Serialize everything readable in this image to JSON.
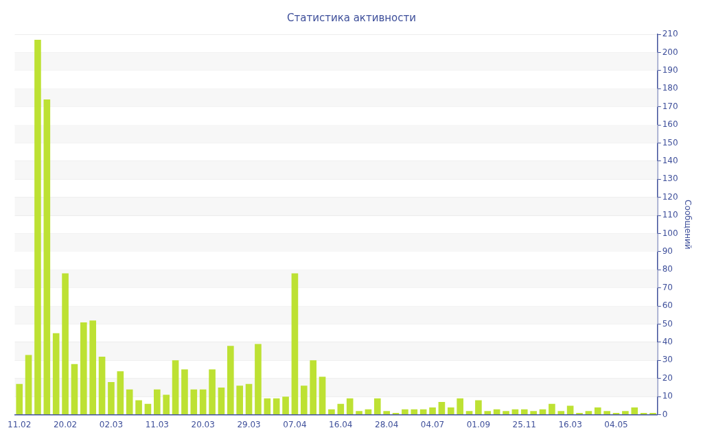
{
  "chart_data": {
    "type": "bar",
    "title": "Статистика активности",
    "ylabel": "Сообщений",
    "categories": [
      "11.02",
      null,
      null,
      null,
      null,
      "20.02",
      null,
      null,
      null,
      null,
      "02.03",
      null,
      null,
      null,
      null,
      "11.03",
      null,
      null,
      null,
      null,
      "20.03",
      null,
      null,
      null,
      null,
      "29.03",
      null,
      null,
      null,
      null,
      "07.04",
      null,
      null,
      null,
      null,
      "16.04",
      null,
      null,
      null,
      null,
      "28.04",
      null,
      null,
      null,
      null,
      "04.07",
      null,
      null,
      null,
      null,
      "01.09",
      null,
      null,
      null,
      null,
      "25.11",
      null,
      null,
      null,
      null,
      "16.03",
      null,
      null,
      null,
      null,
      "04.05",
      null,
      null,
      null,
      null
    ],
    "values": [
      17,
      33,
      207,
      174,
      45,
      78,
      28,
      51,
      52,
      32,
      18,
      24,
      14,
      8,
      6,
      14,
      11,
      30,
      25,
      14,
      14,
      25,
      15,
      38,
      16,
      17,
      39,
      9,
      9,
      10,
      78,
      16,
      30,
      21,
      3,
      6,
      9,
      2,
      3,
      9,
      2,
      1,
      3,
      3,
      3,
      4,
      7,
      4,
      9,
      2,
      8,
      2,
      3,
      2,
      3,
      3,
      2,
      3,
      6,
      2,
      5,
      1,
      2,
      4,
      2,
      1,
      2,
      4,
      1,
      1
    ],
    "color": "#bde133",
    "ylim": [
      0,
      210
    ],
    "yticks": [
      0,
      10,
      20,
      30,
      40,
      50,
      60,
      70,
      80,
      90,
      100,
      110,
      120,
      130,
      140,
      150,
      160,
      170,
      180,
      190,
      200,
      210
    ],
    "grid": "y",
    "legend": false
  }
}
